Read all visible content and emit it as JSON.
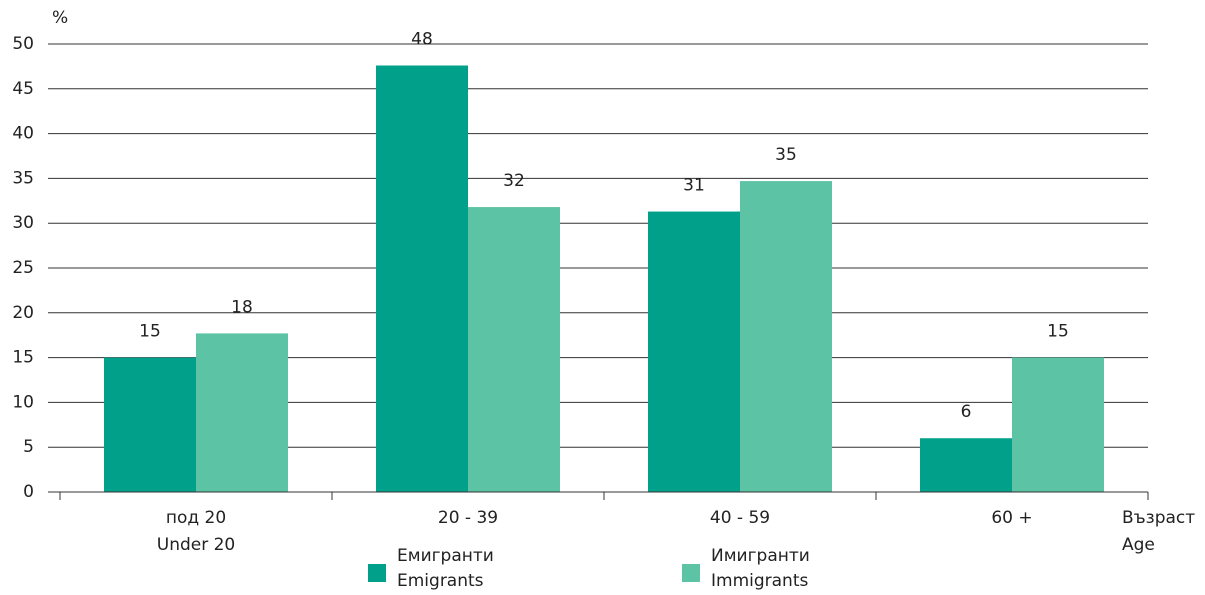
{
  "chart_data": {
    "type": "bar",
    "y_label": "%",
    "x_label": [
      "Възраст",
      "Age"
    ],
    "categories": [
      [
        "под 20",
        "Under 20"
      ],
      [
        "20 - 39"
      ],
      [
        "40 - 59"
      ],
      [
        "60 +"
      ]
    ],
    "series": [
      {
        "name": [
          "Емигранти",
          "Emigrants"
        ],
        "color": "#00a08a",
        "values": [
          15,
          47.6,
          31.3,
          6
        ],
        "value_labels": [
          "15",
          "48",
          "31",
          "6"
        ]
      },
      {
        "name": [
          "Имигранти",
          "Immigrants"
        ],
        "color": "#5cc3a5",
        "values": [
          17.7,
          31.8,
          34.7,
          15
        ],
        "value_labels": [
          "18",
          "32",
          "35",
          "15"
        ]
      }
    ],
    "ylim": [
      0,
      50
    ],
    "yticks": [
      0,
      5,
      10,
      15,
      20,
      25,
      30,
      35,
      40,
      45,
      50
    ],
    "grid": true
  }
}
